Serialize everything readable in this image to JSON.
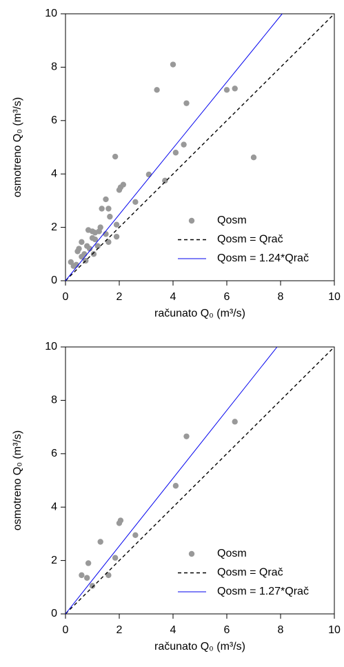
{
  "chart_data": [
    {
      "type": "scatter",
      "xlabel": "računato Q₀ (m³/s)",
      "ylabel": "osmotreno Q₀ (m³/s)",
      "xlim": [
        0,
        10
      ],
      "ylim": [
        0,
        10
      ],
      "xticks": [
        0,
        2,
        4,
        6,
        8,
        10
      ],
      "yticks": [
        0,
        2,
        4,
        6,
        8,
        10
      ],
      "series": [
        {
          "name": "Qosm",
          "color": "#999999",
          "mode": "markers",
          "x": [
            0.2,
            0.3,
            0.4,
            0.45,
            0.5,
            0.6,
            0.6,
            0.7,
            0.75,
            0.8,
            0.85,
            0.9,
            1.0,
            1.0,
            1.05,
            1.1,
            1.1,
            1.2,
            1.25,
            1.3,
            1.35,
            1.5,
            1.5,
            1.6,
            1.6,
            1.65,
            1.85,
            1.9,
            1.9,
            2.0,
            2.05,
            2.15,
            2.6,
            3.1,
            3.4,
            3.7,
            4.0,
            4.1,
            4.4,
            4.5,
            6.0,
            6.3,
            7.0
          ],
          "values": [
            0.7,
            0.55,
            0.6,
            1.1,
            1.2,
            1.45,
            0.9,
            1.0,
            0.75,
            1.3,
            1.9,
            1.2,
            1.6,
            1.85,
            1.0,
            1.55,
            1.8,
            1.3,
            1.85,
            2.0,
            2.7,
            3.05,
            1.75,
            2.7,
            1.45,
            2.4,
            4.65,
            2.1,
            1.65,
            3.4,
            3.5,
            3.6,
            2.95,
            3.98,
            7.15,
            3.75,
            8.1,
            4.8,
            5.1,
            6.65,
            7.15,
            7.2,
            4.62
          ]
        },
        {
          "name": "Qosm = Qrač",
          "color": "#000000",
          "mode": "dashed",
          "x": [
            0,
            10
          ],
          "values": [
            0,
            10
          ]
        },
        {
          "name": "Qosm = 1.24*Qrač",
          "color": "#0000ee",
          "mode": "line",
          "x": [
            0,
            8.06
          ],
          "values": [
            0,
            10
          ]
        }
      ]
    },
    {
      "type": "scatter",
      "xlabel": "računato Q₀ (m³/s)",
      "ylabel": "osmotreno Q₀ (m³/s)",
      "xlim": [
        0,
        10
      ],
      "ylim": [
        0,
        10
      ],
      "xticks": [
        0,
        2,
        4,
        6,
        8,
        10
      ],
      "yticks": [
        0,
        2,
        4,
        6,
        8,
        10
      ],
      "series": [
        {
          "name": "Qosm",
          "color": "#999999",
          "mode": "markers",
          "x": [
            0.6,
            0.8,
            0.85,
            1.0,
            1.3,
            1.6,
            1.85,
            2.0,
            2.05,
            2.6,
            4.1,
            4.5,
            6.3
          ],
          "values": [
            1.45,
            1.35,
            1.9,
            1.05,
            2.7,
            1.45,
            2.1,
            3.4,
            3.5,
            2.95,
            4.8,
            6.65,
            7.2
          ]
        },
        {
          "name": "Qosm = Qrač",
          "color": "#000000",
          "mode": "dashed",
          "x": [
            0,
            10
          ],
          "values": [
            0,
            10
          ]
        },
        {
          "name": "Qosm = 1.27*Qrač",
          "color": "#0000ee",
          "mode": "line",
          "x": [
            0,
            7.87
          ],
          "values": [
            0,
            10
          ]
        }
      ]
    }
  ]
}
